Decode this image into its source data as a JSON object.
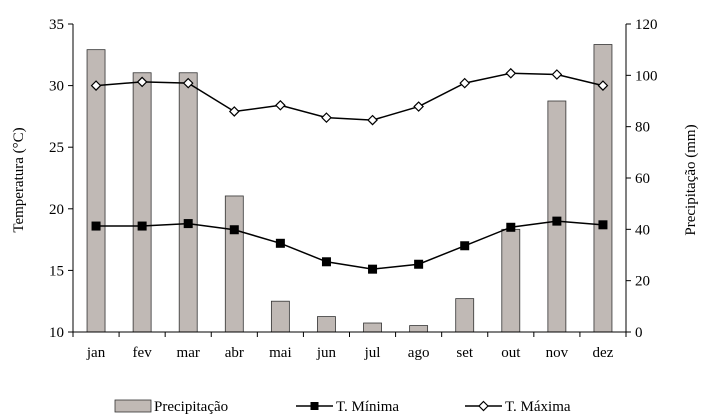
{
  "chart_data": {
    "type": "bar+line",
    "categories": [
      "jan",
      "fev",
      "mar",
      "abr",
      "mai",
      "jun",
      "jul",
      "ago",
      "set",
      "out",
      "nov",
      "dez"
    ],
    "y_left": {
      "label": "Temperatura (°C)",
      "range": [
        10,
        35
      ],
      "ticks": [
        10,
        15,
        20,
        25,
        30,
        35
      ]
    },
    "y_right": {
      "label": "Precipitação (mm)",
      "range": [
        0,
        120
      ],
      "ticks": [
        0,
        20,
        40,
        60,
        80,
        100,
        120
      ]
    },
    "series": [
      {
        "name": "Precipitação",
        "kind": "bar",
        "axis": "right",
        "color": "#c0b9b5",
        "values": [
          110,
          101,
          101,
          53,
          12,
          6,
          3.5,
          2.5,
          13,
          40,
          90,
          112
        ]
      },
      {
        "name": "T. Mínima",
        "kind": "line",
        "axis": "left",
        "marker": "filled-square",
        "color": "#000000",
        "values": [
          18.6,
          18.6,
          18.8,
          18.3,
          17.2,
          15.7,
          15.1,
          15.5,
          17.0,
          18.5,
          19.0,
          18.7
        ]
      },
      {
        "name": "T. Máxima",
        "kind": "line",
        "axis": "left",
        "marker": "open-diamond",
        "color": "#000000",
        "values": [
          30.0,
          30.3,
          30.2,
          27.9,
          28.4,
          27.4,
          27.2,
          28.3,
          30.2,
          31.0,
          30.9,
          30.0
        ]
      }
    ],
    "legend_position": "bottom",
    "grid": false
  }
}
